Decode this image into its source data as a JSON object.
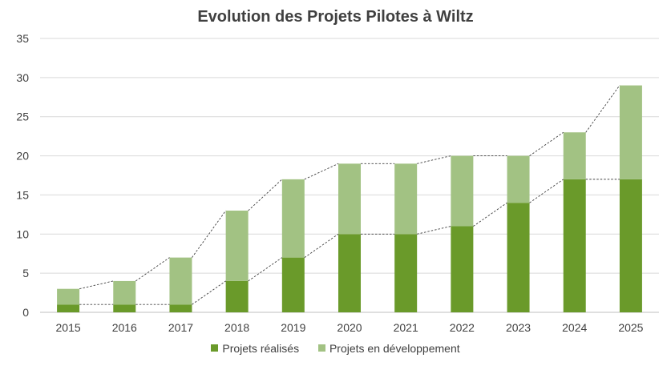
{
  "chart_data": {
    "type": "bar",
    "stacked": true,
    "title": "Evolution des Projets Pilotes à Wiltz",
    "categories": [
      "2015",
      "2016",
      "2017",
      "2018",
      "2019",
      "2020",
      "2021",
      "2022",
      "2023",
      "2024",
      "2025"
    ],
    "series": [
      {
        "name": "Projets réalisés",
        "color": "#6a9a2a",
        "values": [
          1,
          1,
          1,
          4,
          7,
          10,
          10,
          11,
          14,
          17,
          17
        ]
      },
      {
        "name": "Projets en développement",
        "color": "#a2c283",
        "values": [
          2,
          3,
          6,
          9,
          10,
          9,
          9,
          9,
          6,
          6,
          12
        ]
      }
    ],
    "ylim": [
      0,
      35
    ],
    "yticks": [
      0,
      5,
      10,
      15,
      20,
      25,
      30,
      35
    ],
    "grid": true,
    "legend": "bottom",
    "series_lines": "dashed"
  }
}
